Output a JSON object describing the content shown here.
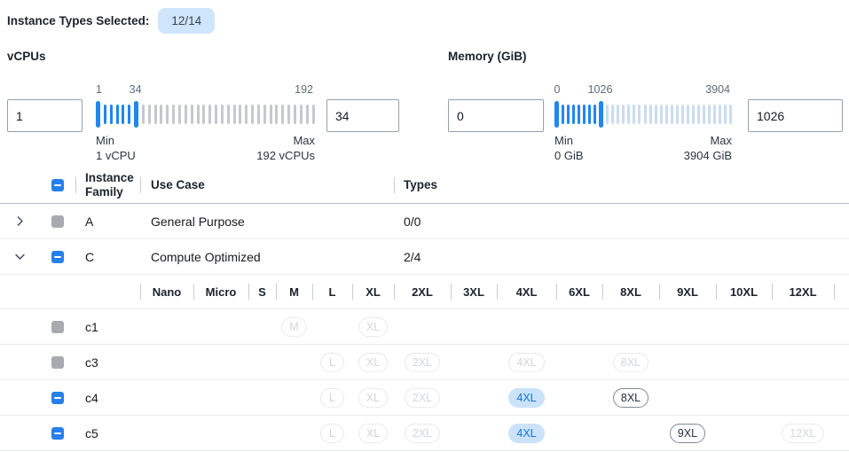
{
  "colors": {
    "accent_blue": "#1f87f0",
    "checkbox_blue": "#2680eb",
    "selected_pill_bg": "#cbe3fa",
    "selected_pill_text": "#1672d3",
    "count_badge_bg": "#cfe5fb"
  },
  "header": {
    "label": "Instance Types Selected:",
    "badge": "12/14"
  },
  "filters": {
    "vcpus": {
      "title": "vCPUs",
      "input_left": "1",
      "input_right": "34",
      "mark_low": "1",
      "mark_high": "34",
      "mark_max": "192",
      "min_label": "Min",
      "min_value": "1 vCPU",
      "max_label": "Max",
      "max_value": "192 vCPUs",
      "slider": {
        "total_ticks": 36,
        "handle_low_index": 0,
        "handle_high_index": 6,
        "selected_color": "#1f87f0",
        "unselected_color": "#c5c8cc"
      }
    },
    "memory": {
      "title": "Memory (GiB)",
      "input_left": "0",
      "input_right": "1026",
      "mark_low": "0",
      "mark_high": "1026",
      "mark_max": "3904",
      "min_label": "Min",
      "min_value": "0 GiB",
      "max_label": "Max",
      "max_value": "3904 GiB",
      "slider": {
        "total_ticks": 33,
        "handle_low_index": 0,
        "handle_high_index": 8,
        "selected_color": "#1f87f0",
        "unselected_color": "#cbdcee"
      }
    }
  },
  "table": {
    "columns": {
      "family": "Instance Family",
      "use_case": "Use Case",
      "types": "Types"
    },
    "select_all_checkbox_state": "indeterminate",
    "families": [
      {
        "name": "A",
        "use_case": "General Purpose",
        "types": "0/0",
        "expanded": false,
        "checkbox": "disabled"
      },
      {
        "name": "C",
        "use_case": "Compute Optimized",
        "types": "2/4",
        "expanded": true,
        "checkbox": "indeterminate"
      }
    ],
    "size_columns": [
      "Nano",
      "Micro",
      "S",
      "M",
      "L",
      "XL",
      "2XL",
      "3XL",
      "4XL",
      "6XL",
      "8XL",
      "9XL",
      "10XL",
      "12XL"
    ],
    "subrows": [
      {
        "label": "c1",
        "checkbox": "disabled",
        "sizes": {
          "M": "muted",
          "XL": "muted"
        }
      },
      {
        "label": "c3",
        "checkbox": "disabled",
        "sizes": {
          "L": "muted",
          "XL": "muted",
          "2XL": "muted",
          "4XL": "muted",
          "8XL": "muted"
        }
      },
      {
        "label": "c4",
        "checkbox": "indeterminate",
        "sizes": {
          "L": "muted",
          "XL": "muted",
          "2XL": "muted",
          "4XL": "selected",
          "8XL": "available"
        }
      },
      {
        "label": "c5",
        "checkbox": "indeterminate",
        "sizes": {
          "L": "muted",
          "XL": "muted",
          "2XL": "muted",
          "4XL": "selected",
          "9XL": "available",
          "12XL": "muted"
        }
      }
    ]
  }
}
